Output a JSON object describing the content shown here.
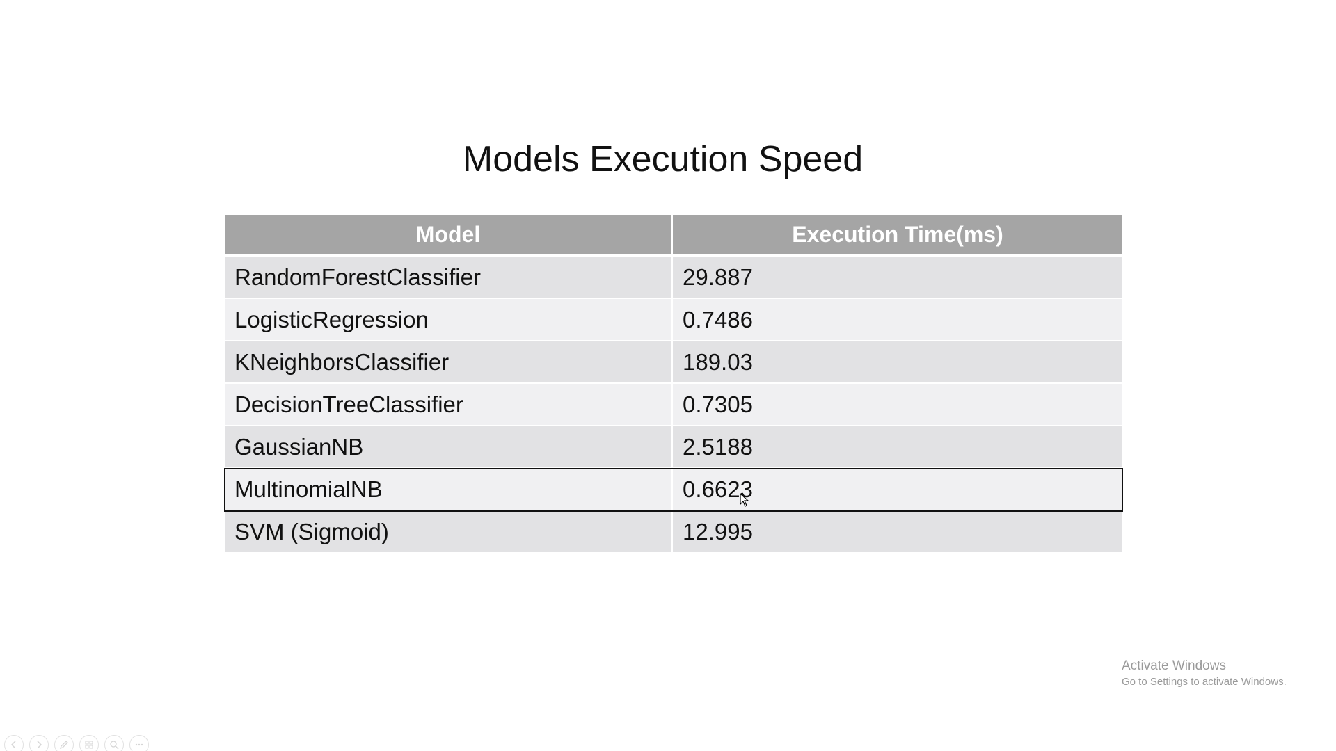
{
  "slide": {
    "title": "Models Execution Speed"
  },
  "table": {
    "headers": [
      "Model",
      "Execution Time(ms)"
    ],
    "rows": [
      {
        "model": "RandomForestClassifier",
        "time": "29.887"
      },
      {
        "model": "LogisticRegression",
        "time": "0.7486"
      },
      {
        "model": "KNeighborsClassifier",
        "time": "189.03"
      },
      {
        "model": "DecisionTreeClassifier",
        "time": "0.7305"
      },
      {
        "model": "GaussianNB",
        "time": "2.5188"
      },
      {
        "model": "MultinomialNB",
        "time": "0.6623"
      },
      {
        "model": "SVM (Sigmoid)",
        "time": "12.995"
      }
    ],
    "selected_row_index": 5
  },
  "watermark": {
    "line1": "Activate Windows",
    "line2": "Go to Settings to activate Windows."
  },
  "controls": {
    "icons": [
      "previous-icon",
      "next-icon",
      "pen-icon",
      "slides-icon",
      "zoom-icon",
      "more-icon"
    ]
  },
  "colors": {
    "header_bg": "#a5a5a5",
    "row_odd": "#e2e2e4",
    "row_even": "#f0f0f2",
    "selection_border": "#111111"
  }
}
